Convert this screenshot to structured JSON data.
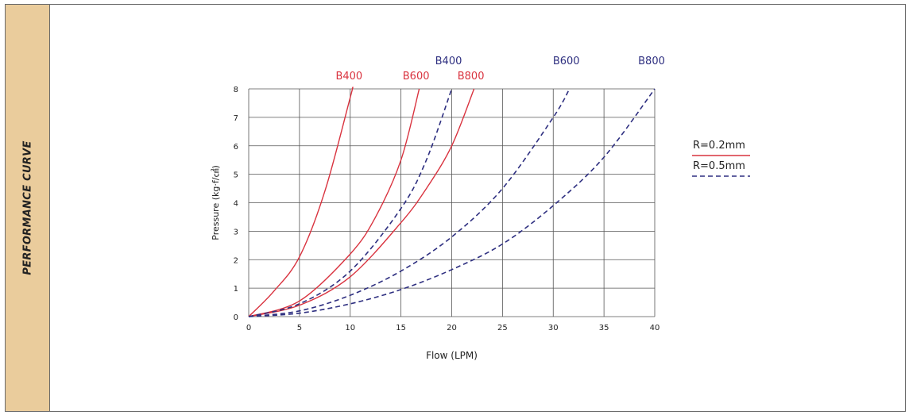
{
  "colors": {
    "sidebar_bg": "#eacc9c",
    "red_series": "#d9333f",
    "blue_series": "#2e2f80",
    "grid": "#555555",
    "border": "#6a6a6a"
  },
  "sidebar": {
    "label": "PERFORMANCE CURVE"
  },
  "chart_data": {
    "type": "line",
    "xlabel": "Flow (LPM)",
    "ylabel": "Pressure (kg·f/㎠)",
    "xlim": [
      0,
      40
    ],
    "ylim": [
      0,
      8
    ],
    "xticks": [
      0,
      5,
      10,
      15,
      20,
      25,
      30,
      35,
      40
    ],
    "yticks": [
      0,
      1,
      2,
      3,
      4,
      5,
      6,
      7,
      8
    ],
    "grid": true,
    "legend_position": "right",
    "legend": [
      {
        "label": "R=0.2mm",
        "style": "solid",
        "color": "#d9333f"
      },
      {
        "label": "R=0.5mm",
        "style": "dashed",
        "color": "#2e2f80"
      }
    ],
    "series": [
      {
        "name": "B400",
        "group": "R=0.2mm",
        "style": "solid",
        "x": [
          0,
          2.5,
          5,
          7.5,
          10,
          10.2
        ],
        "y": [
          0,
          0.9,
          2.1,
          4.4,
          7.7,
          8
        ]
      },
      {
        "name": "B600",
        "group": "R=0.2mm",
        "style": "solid",
        "x": [
          0,
          5,
          10,
          12.5,
          15,
          16.8
        ],
        "y": [
          0,
          0.55,
          2.2,
          3.5,
          5.5,
          8
        ]
      },
      {
        "name": "B800",
        "group": "R=0.2mm",
        "style": "solid",
        "x": [
          0,
          5,
          10,
          15,
          17.5,
          20,
          22.2
        ],
        "y": [
          0,
          0.4,
          1.4,
          3.3,
          4.5,
          6,
          8
        ]
      },
      {
        "name": "B400",
        "group": "R=0.5mm",
        "style": "dashed",
        "x": [
          0,
          5,
          10,
          15,
          17.5,
          20
        ],
        "y": [
          0,
          0.45,
          1.6,
          3.8,
          5.5,
          8
        ]
      },
      {
        "name": "B600",
        "group": "R=0.5mm",
        "style": "dashed",
        "x": [
          0,
          5,
          10,
          15,
          20,
          25,
          30,
          31.6
        ],
        "y": [
          0,
          0.2,
          0.75,
          1.6,
          2.8,
          4.5,
          7,
          8
        ]
      },
      {
        "name": "B800",
        "group": "R=0.5mm",
        "style": "dashed",
        "x": [
          0,
          5,
          10,
          15,
          20,
          25,
          30,
          35,
          40
        ],
        "y": [
          0,
          0.12,
          0.45,
          0.95,
          1.65,
          2.55,
          3.9,
          5.6,
          8
        ]
      }
    ]
  }
}
